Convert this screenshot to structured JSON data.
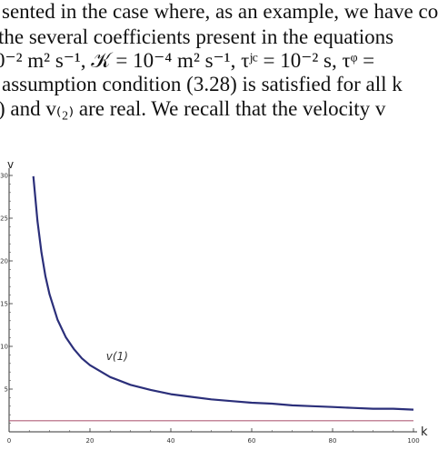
{
  "text": {
    "lines": [
      "sented in the case where, as an example, we have co",
      " the several coefficients present in the equations",
      "0⁻² m² s⁻¹, 𝒦 = 10⁻⁴ m² s⁻¹, τʲᶜ = 10⁻² s, τᵠ =",
      "assumption condition (3.28) is satisfied for all k",
      ") and v₍₂₎ are real. We recall that the velocity v"
    ]
  },
  "chart_data": {
    "type": "line",
    "xlabel": "k",
    "ylabel": "v",
    "xlim": [
      0,
      100
    ],
    "ylim": [
      0,
      30
    ],
    "xticks": [
      "0",
      "20",
      "40",
      "60",
      "80",
      "100"
    ],
    "yticks": [
      "5",
      "10",
      "15",
      "20",
      "25",
      "30"
    ],
    "series": [
      {
        "name": "v(1)",
        "color": "#2b2f7a",
        "x": [
          6,
          7,
          8,
          9,
          10,
          12,
          14,
          16,
          18,
          20,
          25,
          30,
          35,
          40,
          45,
          50,
          55,
          60,
          65,
          70,
          75,
          80,
          85,
          90,
          95,
          100
        ],
        "y": [
          29.9,
          24.7,
          21.0,
          18.2,
          16.1,
          13.1,
          11.1,
          9.7,
          8.6,
          7.8,
          6.4,
          5.5,
          4.9,
          4.4,
          4.1,
          3.8,
          3.6,
          3.4,
          3.3,
          3.1,
          3.0,
          2.9,
          2.8,
          2.7,
          2.7,
          2.6
        ]
      },
      {
        "name": "",
        "color": "#b0607a",
        "x": [
          0,
          100
        ],
        "y": [
          1.3,
          1.3
        ]
      }
    ],
    "annotation": "v(1)"
  }
}
